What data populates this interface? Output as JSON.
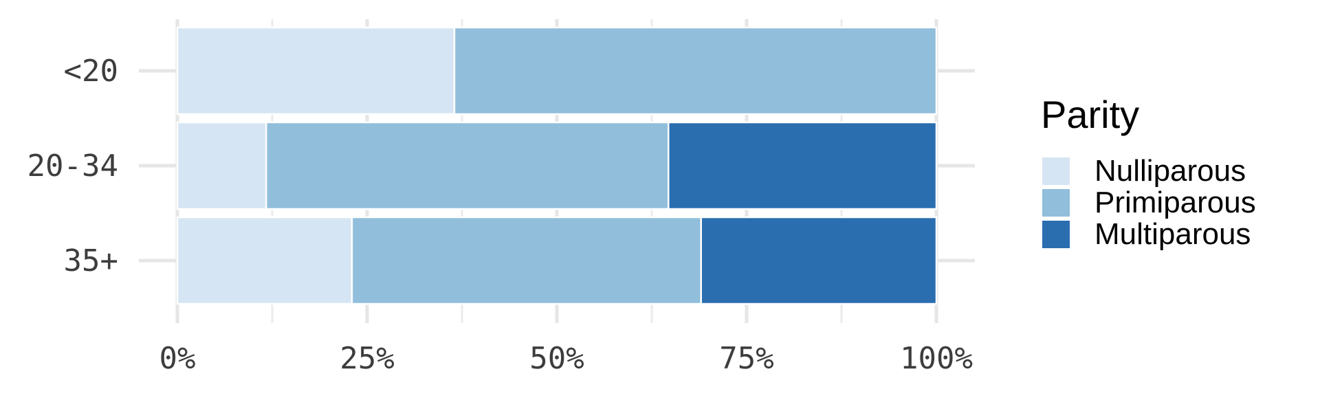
{
  "chart_data": {
    "type": "bar",
    "orientation": "horizontal",
    "stacked": true,
    "normalized": true,
    "title": "",
    "xlabel": "",
    "ylabel": "",
    "categories": [
      "<20",
      "20-34",
      "35+"
    ],
    "series": [
      {
        "name": "Nulliparous",
        "color": "#d6e5f4",
        "values": [
          0.365,
          0.117,
          0.23
        ]
      },
      {
        "name": "Primiparous",
        "color": "#91bedb",
        "values": [
          0.635,
          0.53,
          0.46
        ]
      },
      {
        "name": "Multiparous",
        "color": "#2a6eb0",
        "values": [
          0.0,
          0.353,
          0.31
        ]
      }
    ],
    "x_ticks": [
      {
        "value": 0,
        "label": "0%"
      },
      {
        "value": 0.25,
        "label": "25%"
      },
      {
        "value": 0.5,
        "label": "50%"
      },
      {
        "value": 0.75,
        "label": "75%"
      },
      {
        "value": 1,
        "label": "100%"
      }
    ],
    "xlim": [
      0,
      1
    ],
    "grid": true,
    "legend": {
      "title": "Parity",
      "position": "right"
    }
  }
}
